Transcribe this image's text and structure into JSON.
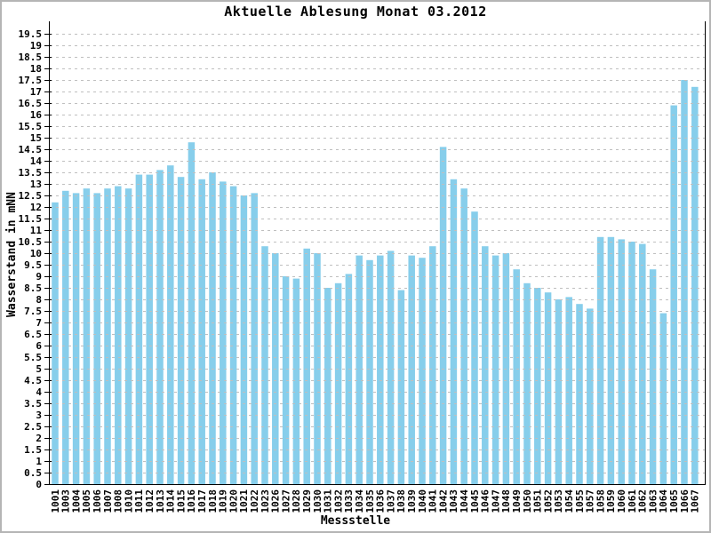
{
  "chart_data": {
    "type": "bar",
    "title": "Aktuelle Ablesung Monat 03.2012",
    "xlabel": "Messstelle",
    "ylabel": "Wasserstand in mNN",
    "categories": [
      "1001",
      "1003",
      "1004",
      "1005",
      "1006",
      "1007",
      "1008",
      "1010",
      "1011",
      "1012",
      "1013",
      "1014",
      "1015",
      "1016",
      "1017",
      "1018",
      "1019",
      "1020",
      "1021",
      "1022",
      "1023",
      "1026",
      "1027",
      "1028",
      "1029",
      "1030",
      "1031",
      "1032",
      "1033",
      "1034",
      "1035",
      "1036",
      "1037",
      "1038",
      "1039",
      "1040",
      "1041",
      "1042",
      "1043",
      "1044",
      "1045",
      "1046",
      "1047",
      "1048",
      "1049",
      "1050",
      "1051",
      "1052",
      "1053",
      "1054",
      "1055",
      "1057",
      "1058",
      "1059",
      "1060",
      "1061",
      "1062",
      "1063",
      "1064",
      "1065",
      "1066",
      "1067"
    ],
    "values": [
      12.2,
      12.7,
      12.6,
      12.8,
      12.6,
      12.8,
      12.9,
      12.8,
      13.4,
      13.4,
      13.6,
      13.8,
      13.3,
      14.8,
      13.2,
      13.5,
      13.1,
      12.9,
      12.5,
      12.6,
      10.3,
      10.0,
      9.0,
      8.9,
      10.2,
      10.0,
      8.5,
      8.7,
      9.1,
      9.9,
      9.7,
      9.9,
      10.1,
      8.4,
      9.9,
      9.8,
      10.3,
      14.6,
      13.2,
      12.8,
      11.8,
      10.3,
      9.9,
      10.0,
      9.3,
      8.7,
      8.5,
      8.3,
      8.0,
      8.1,
      7.8,
      7.6,
      10.7,
      10.7,
      10.6,
      10.5,
      10.4,
      9.3,
      7.4,
      16.4,
      17.5,
      17.2
    ],
    "ylim": [
      0,
      19.5
    ],
    "ytick_step": 0.5,
    "grid": "horizontal-dashed",
    "legend": "none",
    "bar_color": "#87CEEB",
    "grid_color": "#bfbfbf",
    "axis_color": "#000000",
    "text_color": "#000000"
  }
}
